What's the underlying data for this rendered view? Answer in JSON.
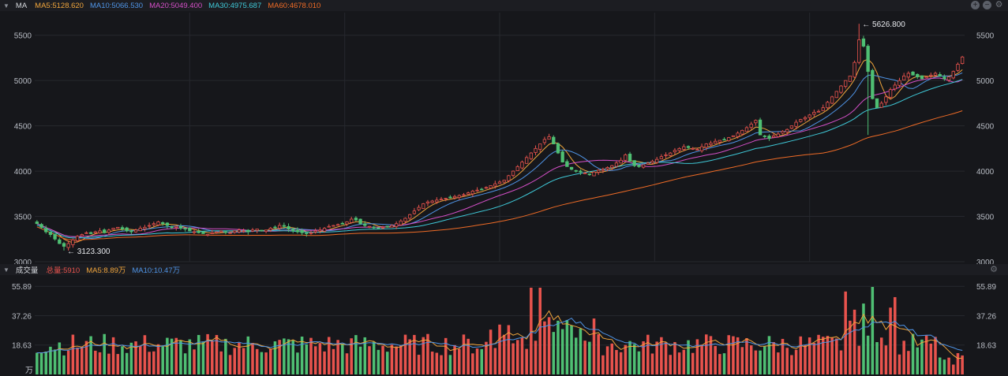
{
  "price_panel": {
    "title": "MA",
    "indicators": [
      {
        "label": "MA5:5128.620",
        "color": "#f0a53c"
      },
      {
        "label": "MA10:5066.530",
        "color": "#4f94e6"
      },
      {
        "label": "MA20:5049.400",
        "color": "#d44fc7"
      },
      {
        "label": "MA30:4975.687",
        "color": "#3fc9d8"
      },
      {
        "label": "MA60:4678.010",
        "color": "#ee6b26"
      }
    ],
    "high_label": "5626.800",
    "low_label": "3123.300"
  },
  "volume_panel": {
    "title": "成交量",
    "indicators": [
      {
        "label": "总量:5910",
        "color": "#e8534d"
      },
      {
        "label": "MA5:8.89万",
        "color": "#f0a53c"
      },
      {
        "label": "MA10:10.47万",
        "color": "#4f94e6"
      }
    ],
    "unit_label": "万"
  },
  "colors": {
    "up": "#e8534d",
    "down": "#4fbf73",
    "grid": "#26282e",
    "text": "#b8bcc4"
  },
  "chart_data": [
    {
      "type": "candlestick",
      "yaxis_ticks": [
        3000,
        3500,
        4000,
        4500,
        5000,
        5500
      ],
      "ylim": [
        3000,
        5750
      ],
      "annotations": [
        {
          "text": "5626.800",
          "value": 5626.8
        },
        {
          "text": "3123.300",
          "value": 3123.3
        }
      ],
      "series": [
        {
          "name": "MA5",
          "value": 5128.62
        },
        {
          "name": "MA10",
          "value": 5066.53
        },
        {
          "name": "MA20",
          "value": 5049.4
        },
        {
          "name": "MA30",
          "value": 4975.687
        },
        {
          "name": "MA60",
          "value": 4678.01
        }
      ],
      "close": [
        3420,
        3380,
        3330,
        3300,
        3250,
        3200,
        3170,
        3200,
        3240,
        3280,
        3300,
        3320,
        3310,
        3330,
        3340,
        3320,
        3350,
        3370,
        3380,
        3360,
        3340,
        3330,
        3350,
        3370,
        3380,
        3400,
        3420,
        3440,
        3420,
        3400,
        3380,
        3390,
        3370,
        3360,
        3340,
        3330,
        3320,
        3310,
        3300,
        3320,
        3330,
        3340,
        3330,
        3320,
        3340,
        3350,
        3340,
        3330,
        3350,
        3360,
        3340,
        3350,
        3370,
        3380,
        3400,
        3390,
        3360,
        3340,
        3330,
        3320,
        3310,
        3320,
        3340,
        3350,
        3370,
        3390,
        3400,
        3410,
        3420,
        3440,
        3470,
        3460,
        3420,
        3400,
        3390,
        3380,
        3370,
        3380,
        3390,
        3400,
        3420,
        3450,
        3480,
        3520,
        3560,
        3600,
        3640,
        3660,
        3670,
        3680,
        3690,
        3700,
        3710,
        3720,
        3730,
        3740,
        3760,
        3780,
        3790,
        3800,
        3820,
        3840,
        3860,
        3880,
        3900,
        3950,
        4000,
        4050,
        4100,
        4150,
        4200,
        4250,
        4300,
        4350,
        4380,
        4300,
        4200,
        4100,
        4050,
        4020,
        4000,
        3990,
        3980,
        3960,
        3990,
        4010,
        4020,
        4040,
        4060,
        4090,
        4120,
        4180,
        4110,
        4060,
        4050,
        4070,
        4090,
        4110,
        4130,
        4160,
        4180,
        4200,
        4230,
        4250,
        4270,
        4260,
        4250,
        4240,
        4270,
        4300,
        4310,
        4330,
        4340,
        4350,
        4370,
        4390,
        4420,
        4450,
        4480,
        4520,
        4560,
        4400,
        4380,
        4360,
        4390,
        4410,
        4440,
        4460,
        4500,
        4540,
        4570,
        4590,
        4620,
        4650,
        4660,
        4700,
        4760,
        4820,
        4880,
        4940,
        5000,
        5050,
        5200,
        5450,
        5380,
        5100,
        4800,
        4700,
        4750,
        4820,
        4900,
        4950,
        5000,
        5050,
        5080,
        5060,
        5040,
        5020,
        5040,
        5060,
        5080,
        5050,
        5020,
        5040,
        5100,
        5180,
        5260
      ]
    },
    {
      "type": "bar",
      "yaxis_ticks": [
        18.63,
        37.26,
        55.89
      ],
      "ylim": [
        0,
        60
      ],
      "series": [
        {
          "name": "MA5",
          "value": 8.89
        },
        {
          "name": "MA10",
          "value": 10.47
        }
      ]
    }
  ]
}
